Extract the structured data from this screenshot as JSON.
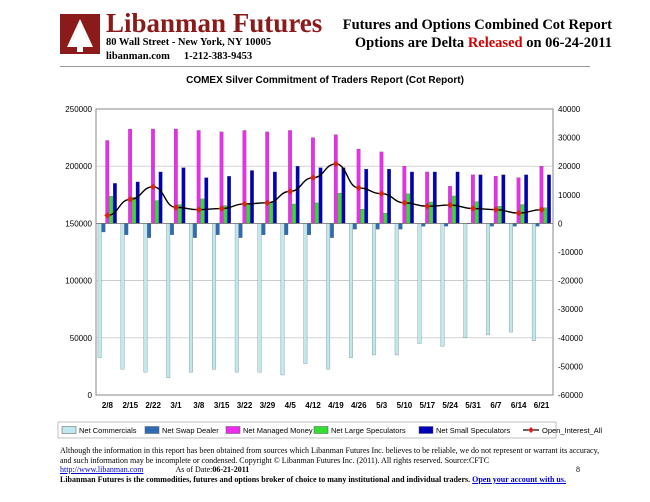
{
  "header": {
    "brand": "Libanman Futures",
    "address": "80 Wall Street - New York, NY 10005",
    "website": "libanman.com",
    "phone": "1-212-383-9453",
    "title_line1": "Futures and Options Combined Cot Report",
    "title_line2_prefix": "Options are Delta ",
    "title_line2_highlight": "Released",
    "title_line2_suffix": " on 06-24-2011",
    "highlight_color": "#d00000",
    "brand_color": "#8b1a1a"
  },
  "chart_data": {
    "type": "bar",
    "title": "COMEX Silver Commitment of Traders Report (Cot Report)",
    "categories": [
      "2/8",
      "2/15",
      "2/22",
      "3/1",
      "3/8",
      "3/15",
      "3/22",
      "3/29",
      "4/5",
      "4/12",
      "4/19",
      "4/26",
      "5/3",
      "5/10",
      "5/17",
      "5/24",
      "5/31",
      "6/7",
      "6/14",
      "6/21"
    ],
    "left_axis": {
      "ylim": [
        0,
        250000
      ],
      "ticks": [
        "0",
        "50000",
        "100000",
        "150000",
        "200000",
        "250000"
      ],
      "tick_values": [
        0,
        50000,
        100000,
        150000,
        200000,
        250000
      ]
    },
    "right_axis": {
      "ylim": [
        -60000,
        40000
      ],
      "ticks": [
        "-60000",
        "-50000",
        "-40000",
        "-30000",
        "-20000",
        "-10000",
        "0",
        "10000",
        "20000",
        "30000",
        "40000"
      ],
      "tick_values": [
        -60000,
        -50000,
        -40000,
        -30000,
        -20000,
        -10000,
        0,
        10000,
        20000,
        30000,
        40000
      ]
    },
    "series": [
      {
        "name": "Net Commercials",
        "axis": "right",
        "color": "#bfe8ef",
        "values": [
          -47000,
          -51000,
          -52000,
          -54000,
          -52000,
          -51000,
          -52000,
          -52000,
          -53000,
          -49000,
          -51000,
          -47000,
          -46000,
          -46000,
          -42000,
          -43000,
          -40000,
          -39000,
          -38000,
          -41000
        ]
      },
      {
        "name": "Net Swap Dealer",
        "axis": "right",
        "color": "#2e6bb5",
        "values": [
          -3000,
          -4000,
          -5000,
          -4000,
          -5000,
          -4000,
          -5000,
          -4000,
          -4000,
          -4000,
          -5000,
          -2000,
          -2000,
          -2000,
          -1000,
          -1000,
          0,
          -1000,
          -1000,
          -1000
        ]
      },
      {
        "name": "Net Managed Money",
        "axis": "right",
        "color": "#ee2cee",
        "values": [
          29000,
          33000,
          33000,
          33000,
          32500,
          32000,
          32500,
          32000,
          32500,
          30000,
          31000,
          26000,
          25000,
          20000,
          18000,
          13000,
          17000,
          16500,
          16000,
          20000
        ]
      },
      {
        "name": "Net Large Speculators",
        "axis": "right",
        "color": "#33dd33",
        "values": [
          9500,
          9200,
          8000,
          6600,
          8600,
          6200,
          6800,
          7400,
          6800,
          7200,
          10600,
          5000,
          3600,
          10400,
          7500,
          9600,
          7600,
          6000,
          6600,
          5500
        ]
      },
      {
        "name": "Net Small Speculators",
        "axis": "right",
        "color": "#0000b8",
        "values": [
          14000,
          14500,
          18000,
          19500,
          16000,
          16500,
          18500,
          18000,
          20000,
          19500,
          19500,
          19000,
          19000,
          18000,
          18000,
          18000,
          17000,
          17000,
          17000,
          17000
        ]
      },
      {
        "name": "Open_Interest_All",
        "axis": "left",
        "type": "line",
        "color": "#e02020",
        "values": [
          157000,
          171000,
          182000,
          164000,
          162000,
          163000,
          167000,
          168000,
          178000,
          190000,
          202000,
          181000,
          176000,
          168000,
          165000,
          166000,
          163000,
          162000,
          159000,
          162000
        ]
      }
    ],
    "grid": true,
    "legend_position": "bottom"
  },
  "footer": {
    "disclaimer": "Although the information in this report has been obtained from sources which Libanman Futures Inc. believes to be reliable, we do not represent or warrant its accuracy, and such information may be incomplete or condensed. Copyright © Libanman Futures Inc. (2011). All rights reserved.  Source:CFTC",
    "url": "http://www.libanman.com",
    "as_of_prefix": "As of Date:",
    "as_of": "06-21-2011",
    "page": "8",
    "tagline": "Libanman Futures is the commodities, futures and options broker of choice to many institutional and individual traders.",
    "cta": "Open your account with us."
  }
}
